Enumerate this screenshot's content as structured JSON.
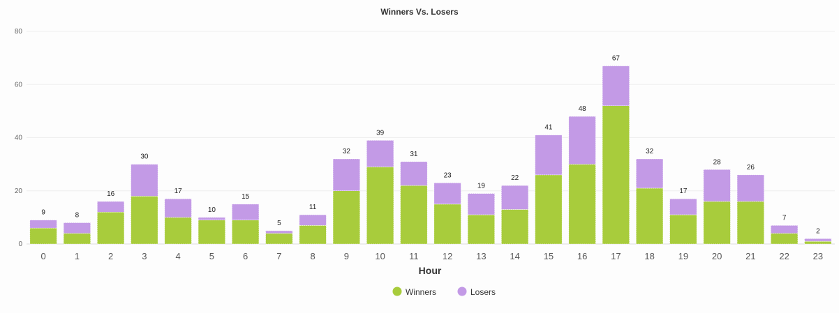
{
  "chart_data": {
    "type": "bar",
    "stacked": true,
    "title": "Winners Vs. Losers",
    "xlabel": "Hour",
    "ylabel": "",
    "ylim": [
      0,
      80
    ],
    "yticks": [
      0,
      20,
      40,
      60,
      80
    ],
    "grid": true,
    "legend_position": "bottom-center",
    "categories": [
      "0",
      "1",
      "2",
      "3",
      "4",
      "5",
      "6",
      "7",
      "8",
      "9",
      "10",
      "11",
      "12",
      "13",
      "14",
      "15",
      "16",
      "17",
      "18",
      "19",
      "20",
      "21",
      "22",
      "23"
    ],
    "series": [
      {
        "name": "Winners",
        "color": "#a8cc3c",
        "values": [
          6,
          4,
          12,
          18,
          10,
          9,
          9,
          4,
          7,
          20,
          29,
          22,
          15,
          11,
          13,
          26,
          30,
          52,
          21,
          11,
          16,
          16,
          4,
          1
        ]
      },
      {
        "name": "Losers",
        "color": "#c39ae6",
        "values": [
          3,
          4,
          4,
          12,
          7,
          1,
          6,
          1,
          4,
          12,
          10,
          9,
          8,
          8,
          9,
          15,
          18,
          15,
          11,
          6,
          12,
          10,
          3,
          1
        ]
      }
    ],
    "totals": [
      9,
      8,
      16,
      30,
      17,
      10,
      15,
      5,
      11,
      32,
      39,
      31,
      23,
      19,
      22,
      41,
      48,
      67,
      32,
      17,
      28,
      26,
      7,
      2
    ]
  }
}
